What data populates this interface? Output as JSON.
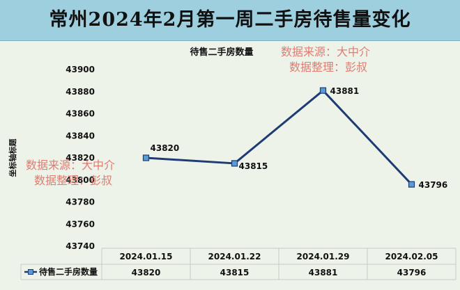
{
  "header": {
    "title": "常州2024年2月第一周二手房待售量变化"
  },
  "chart_data": {
    "type": "line",
    "title": "待售二手房数量",
    "ylabel": "坐标轴标题",
    "categories": [
      "2024.01.15",
      "2024.01.22",
      "2024.01.29",
      "2024.02.05"
    ],
    "series": [
      {
        "name": "待售二手房数量",
        "values": [
          43820,
          43815,
          43881,
          43796
        ]
      }
    ],
    "ylim": [
      43740,
      43900
    ],
    "yticks": [
      43740,
      43760,
      43780,
      43800,
      43820,
      43840,
      43860,
      43880,
      43900
    ],
    "data_labels": [
      "43820",
      "43815",
      "43881",
      "43796"
    ],
    "data_table": true,
    "grid": false,
    "colors": {
      "line": "#1f3b73",
      "marker": "#5b9bd5",
      "title_bar": "#9ecfdf",
      "watermark": "#e0756a"
    }
  },
  "watermarks": [
    {
      "line1": "数据来源：大中介",
      "line2": "数据整理：彭叔"
    },
    {
      "line1": "数据来源：大中介",
      "line2": "数据整理：彭叔"
    }
  ]
}
